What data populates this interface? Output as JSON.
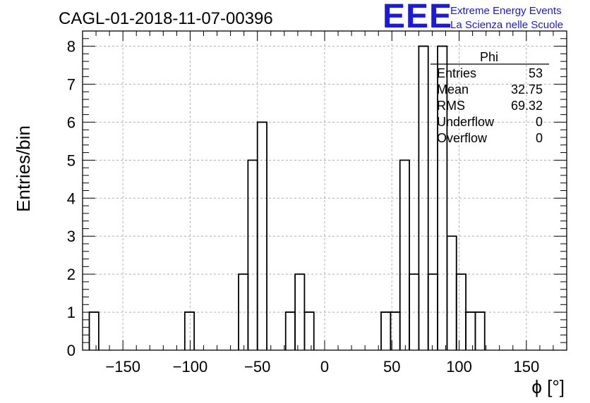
{
  "chart_data": {
    "type": "histogram",
    "title": "CAGL-01-2018-11-07-00396",
    "xlabel": "ϕ [°]",
    "ylabel": "Entries/bin",
    "xlim": [
      -180,
      180
    ],
    "ylim": [
      0,
      8.4
    ],
    "bin_width": 7,
    "grid": true,
    "x_ticks": [
      -150,
      -100,
      -50,
      0,
      50,
      100,
      150
    ],
    "x_tick_labels": [
      "−150",
      "−100",
      "−50",
      "0",
      "50",
      "100",
      "150"
    ],
    "y_ticks": [
      0,
      1,
      2,
      3,
      4,
      5,
      6,
      7,
      8
    ],
    "y_tick_labels": [
      "0",
      "1",
      "2",
      "3",
      "4",
      "5",
      "6",
      "7",
      "8"
    ],
    "bins": [
      {
        "x0": -175,
        "x1": -168,
        "count": 1
      },
      {
        "x0": -104,
        "x1": -97,
        "count": 1
      },
      {
        "x0": -64,
        "x1": -57,
        "count": 2
      },
      {
        "x0": -57,
        "x1": -50,
        "count": 5
      },
      {
        "x0": -50,
        "x1": -43,
        "count": 6
      },
      {
        "x0": -29,
        "x1": -22,
        "count": 1
      },
      {
        "x0": -22,
        "x1": -15,
        "count": 2
      },
      {
        "x0": -15,
        "x1": -8,
        "count": 1
      },
      {
        "x0": 42,
        "x1": 49,
        "count": 1
      },
      {
        "x0": 49,
        "x1": 56,
        "count": 1
      },
      {
        "x0": 56,
        "x1": 63,
        "count": 5
      },
      {
        "x0": 63,
        "x1": 70,
        "count": 2
      },
      {
        "x0": 70,
        "x1": 77,
        "count": 8
      },
      {
        "x0": 77,
        "x1": 84,
        "count": 2
      },
      {
        "x0": 84,
        "x1": 91,
        "count": 8
      },
      {
        "x0": 91,
        "x1": 98,
        "count": 3
      },
      {
        "x0": 98,
        "x1": 105,
        "count": 2
      },
      {
        "x0": 105,
        "x1": 112,
        "count": 1
      },
      {
        "x0": 112,
        "x1": 119,
        "count": 1
      }
    ],
    "stats": {
      "name": "Phi",
      "rows": [
        {
          "label": "Entries",
          "value": "53"
        },
        {
          "label": "Mean",
          "value": "32.75"
        },
        {
          "label": "RMS",
          "value": "69.32"
        },
        {
          "label": "Underflow",
          "value": "0"
        },
        {
          "label": "Overflow",
          "value": "0"
        }
      ]
    },
    "colors": {
      "line": "#000000",
      "grid": "#b0b0b0",
      "logo": "#1a1adf"
    }
  },
  "logo": {
    "mark": "EEE",
    "line1": "Extreme Energy Events",
    "line2": "La Scienza nelle Scuole"
  }
}
